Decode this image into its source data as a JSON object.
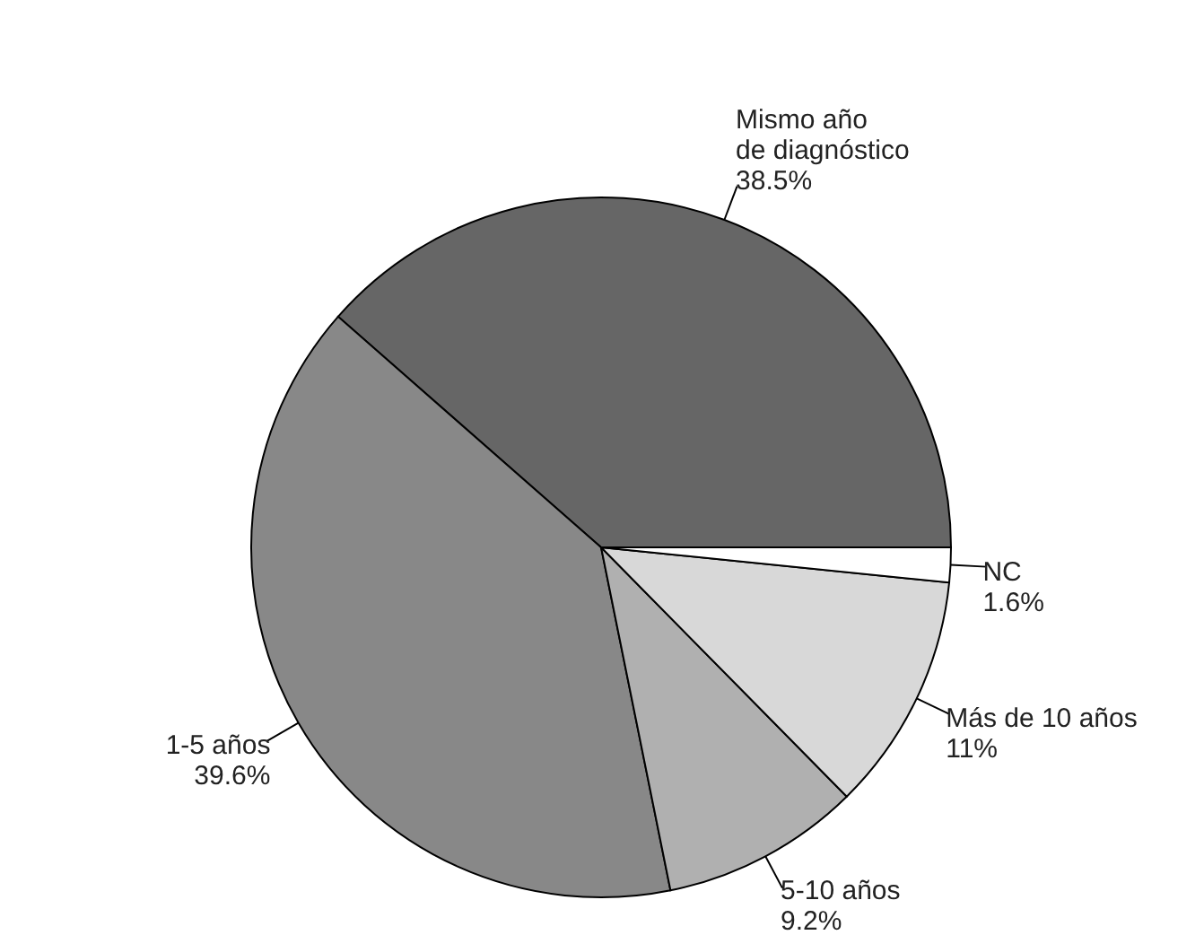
{
  "chart_data": {
    "type": "pie",
    "categories": [
      "Mismo año de diagnóstico",
      "1-5 años",
      "5-10 años",
      "Más de 10 años",
      "NC"
    ],
    "values": [
      38.5,
      39.6,
      9.2,
      11,
      1.6
    ],
    "colors": [
      "#666666",
      "#888888",
      "#b0b0b0",
      "#d8d8d8",
      "#ffffff"
    ],
    "value_labels": [
      "38.5%",
      "39.6%",
      "9.2%",
      "11%",
      "1.6%"
    ]
  }
}
